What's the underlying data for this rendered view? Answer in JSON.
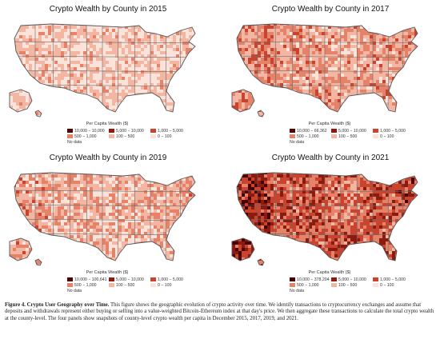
{
  "panels": [
    {
      "title": "Crypto Wealth by County in 2015",
      "legend_title": "Per Capita Wealth ($)",
      "legend": [
        "10,000 − 10,000",
        "5,000 − 10,000",
        "1,000 − 5,000",
        "500 − 1,000",
        "100 − 500",
        "0 − 100",
        "No data"
      ],
      "intensity": 0.12
    },
    {
      "title": "Crypto Wealth by County in 2017",
      "legend_title": "Per Capita Wealth ($)",
      "legend": [
        "10,000 − 66,362",
        "5,000 − 10,000",
        "1,000 − 5,000",
        "500 − 1,000",
        "100 − 500",
        "0 − 100",
        "No data"
      ],
      "intensity": 0.42
    },
    {
      "title": "Crypto Wealth by County in 2019",
      "legend_title": "Per Capita Wealth ($)",
      "legend": [
        "10,000 − 100,641",
        "5,000 − 10,000",
        "1,000 − 5,000",
        "500 − 1,000",
        "100 − 500",
        "0 − 100",
        "No data"
      ],
      "intensity": 0.32
    },
    {
      "title": "Crypto Wealth by County in 2021",
      "legend_title": "Per Capita Wealth ($)",
      "legend": [
        "10,000 − 378,204",
        "5,000 − 10,000",
        "1,000 − 5,000",
        "500 − 1,000",
        "100 − 500",
        "0 − 100",
        "No data"
      ],
      "intensity": 0.78
    }
  ],
  "colors": {
    "bin_1": "#4a0000",
    "bin_2": "#8b1a10",
    "bin_3": "#c8442f",
    "bin_4": "#e4826a",
    "bin_5": "#f3b6a2",
    "bin_6": "#fbe3d9",
    "no_data": "#ffffff",
    "outline": "#6b6b6b"
  },
  "caption": {
    "label": "Figure 4. Crypto User Geography over Time.",
    "text": "This figure shows the geographic evolution of crypto activity over time. We identify transactions to cryptocurrency exchanges and assume that deposits and withdrawals represent either buying or selling into a value-weighted Bitcoin-Ethereum index at that day's price. We then aggregate these transactions to calculate the total crypto wealth at the county-level. The four panels show snapshots of county-level crypto wealth per capita in December 2015, 2017, 2019, and 2021."
  }
}
